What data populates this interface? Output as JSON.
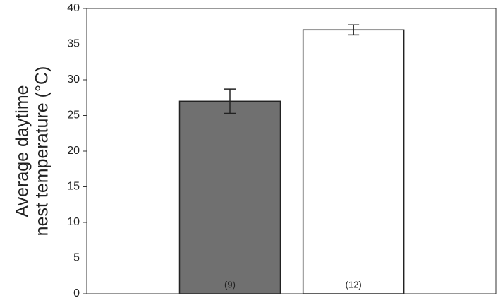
{
  "chart_data": {
    "type": "bar",
    "y_label": [
      "Average daytime",
      "nest temperature (°C)"
    ],
    "categories": [
      null,
      null
    ],
    "values": [
      27,
      37
    ],
    "errors": [
      1.7,
      0.7
    ],
    "colors": [
      "#707070",
      "#ffffff"
    ],
    "sample_labels": [
      "(9)",
      "(12)"
    ],
    "ylim": [
      0,
      40
    ],
    "yticks": [
      0,
      5,
      10,
      15,
      20,
      25,
      30,
      35,
      40
    ],
    "grid": false
  }
}
